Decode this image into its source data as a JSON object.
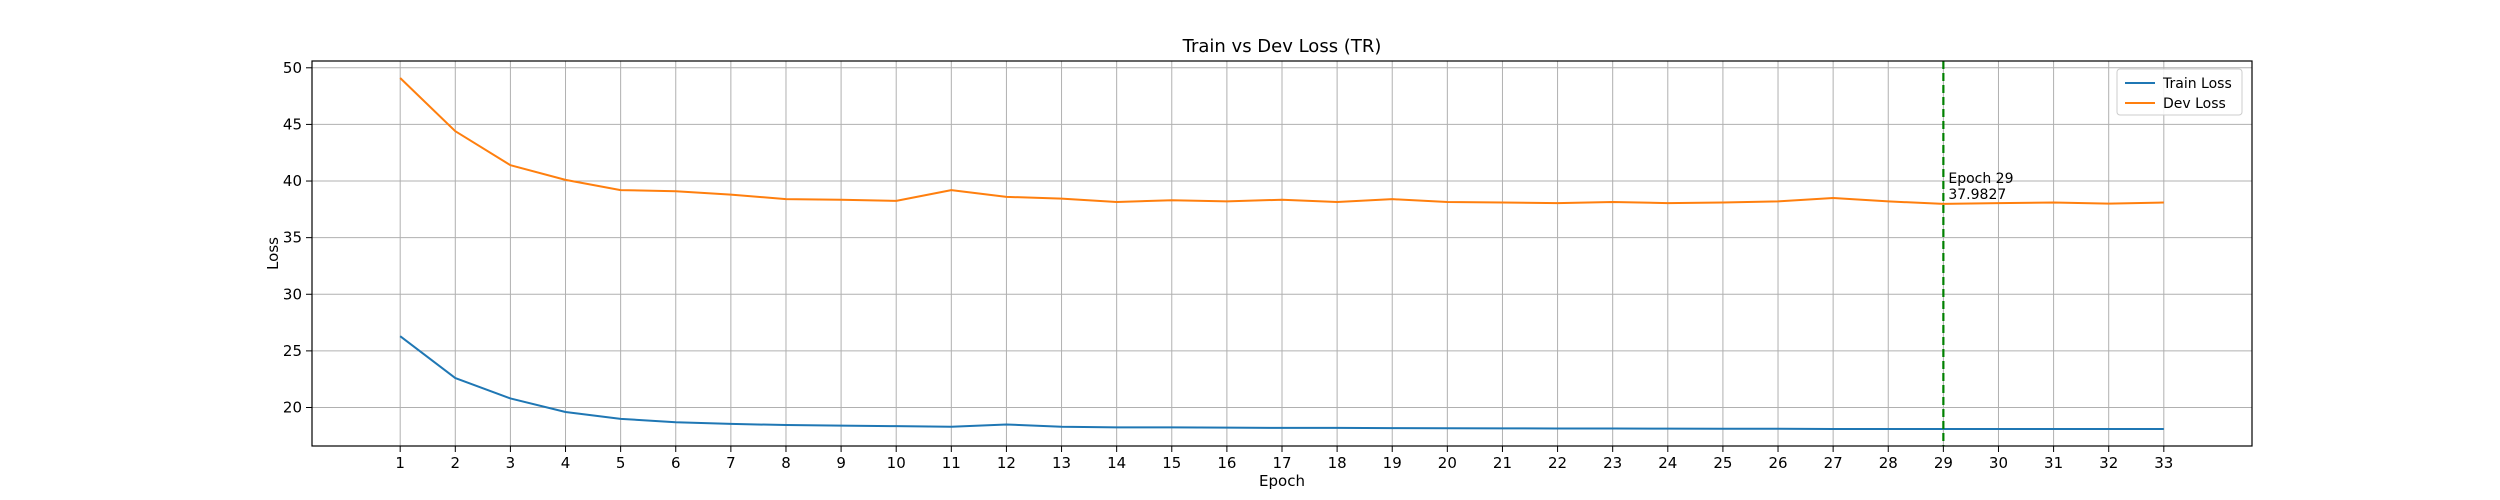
{
  "chart_data": {
    "type": "line",
    "title": "Train vs Dev Loss (TR)",
    "xlabel": "Epoch",
    "ylabel": "Loss",
    "x": [
      1,
      2,
      3,
      4,
      5,
      6,
      7,
      8,
      9,
      10,
      11,
      12,
      13,
      14,
      15,
      16,
      17,
      18,
      19,
      20,
      21,
      22,
      23,
      24,
      25,
      26,
      27,
      28,
      29,
      30,
      31,
      32,
      33
    ],
    "xlim": [
      -0.6,
      34.6
    ],
    "ylim": [
      16.6,
      50.6
    ],
    "yticks": [
      20,
      25,
      30,
      35,
      40,
      45,
      50
    ],
    "grid": true,
    "legend_position": "top-right",
    "series": [
      {
        "name": "Train Loss",
        "color": "#1f77b4",
        "values": [
          26.3,
          22.6,
          20.8,
          19.6,
          19.0,
          18.7,
          18.55,
          18.45,
          18.4,
          18.35,
          18.3,
          18.5,
          18.3,
          18.25,
          18.25,
          18.22,
          18.2,
          18.2,
          18.18,
          18.17,
          18.16,
          18.15,
          18.15,
          18.13,
          18.12,
          18.12,
          18.1,
          18.1,
          18.1,
          18.1,
          18.1,
          18.1,
          18.1
        ]
      },
      {
        "name": "Dev Loss",
        "color": "#ff7f0e",
        "values": [
          49.1,
          44.4,
          41.4,
          40.1,
          39.2,
          39.1,
          38.8,
          38.4,
          38.35,
          38.25,
          39.2,
          38.6,
          38.45,
          38.15,
          38.3,
          38.2,
          38.35,
          38.15,
          38.4,
          38.15,
          38.1,
          38.05,
          38.15,
          38.05,
          38.1,
          38.2,
          38.5,
          38.2,
          37.9827,
          38.05,
          38.1,
          38.0,
          38.1
        ]
      }
    ],
    "annotation": {
      "line1": "Epoch 29",
      "line2": "37.9827",
      "x": 29,
      "y": 37.9827,
      "color": "#008000"
    }
  }
}
